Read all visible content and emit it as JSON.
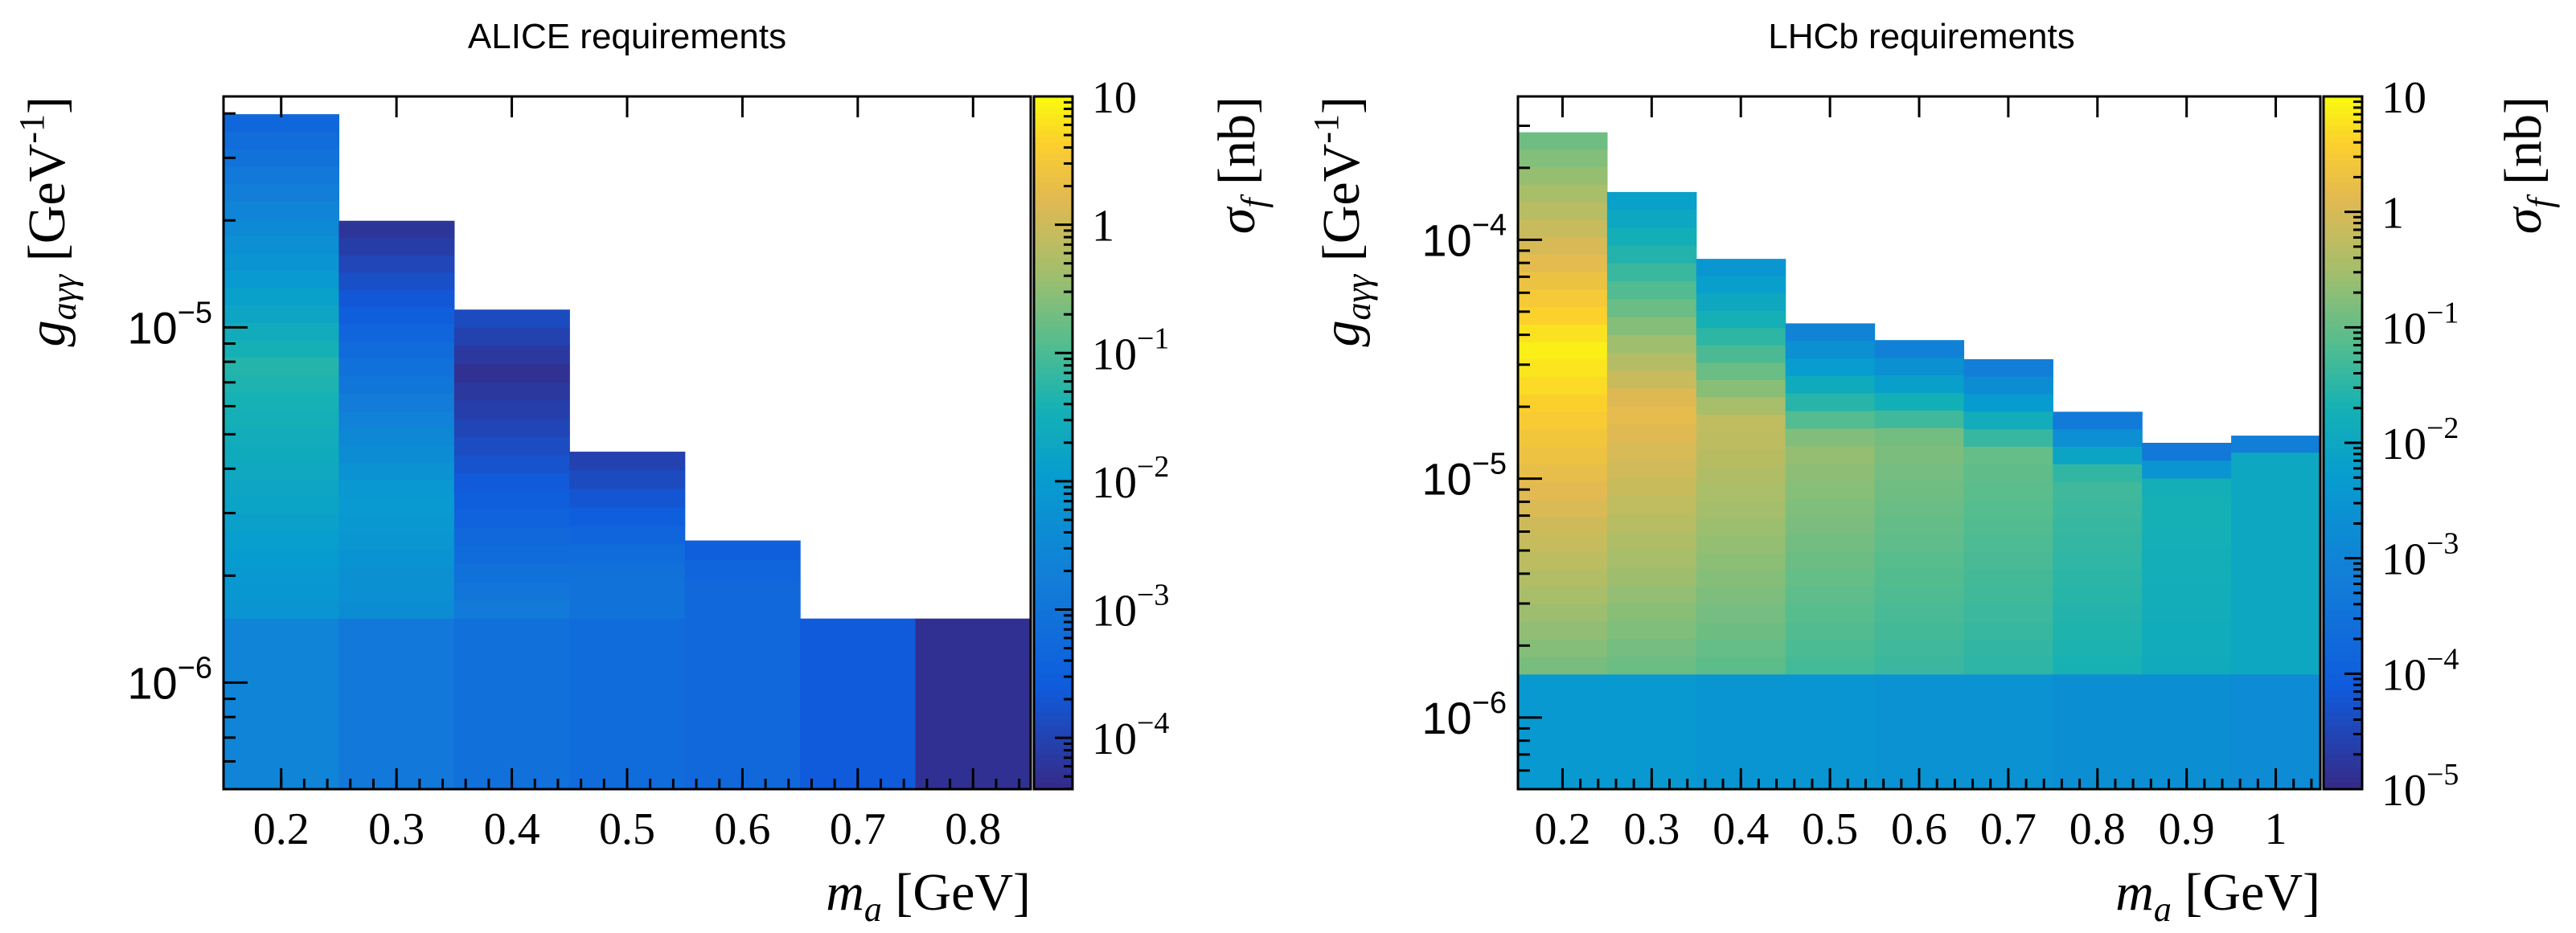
{
  "chart_data": [
    {
      "type": "heatmap",
      "title": "ALICE requirements",
      "xlabel": {
        "symbol": "m",
        "sub": "a",
        "unit": "[GeV]"
      },
      "ylabel": {
        "symbol": "g",
        "sub": "aγγ",
        "unit": "[GeV",
        "unit_exp": "-1",
        "unit_close": "]"
      },
      "zlabel": {
        "symbol": "σ",
        "sub": "f",
        "unit": "[nb]"
      },
      "xlim": [
        0.15,
        0.85
      ],
      "ylim_log10": [
        -6.3,
        -4.35
      ],
      "x_ticks": [
        "0.2",
        "0.3",
        "0.4",
        "0.5",
        "0.6",
        "0.7",
        "0.8"
      ],
      "y_ticks": [
        {
          "base": "10",
          "exp": "−5",
          "log": -5
        },
        {
          "base": "10",
          "exp": "−6",
          "log": -6
        }
      ],
      "z_range_log10": [
        -4.4,
        1
      ],
      "z_ticks": [
        {
          "base": "",
          "exp": "",
          "text": "10",
          "log": 1
        },
        {
          "base": "",
          "exp": "",
          "text": "1",
          "log": 0
        },
        {
          "base": "10",
          "exp": "−1",
          "log": -1
        },
        {
          "base": "10",
          "exp": "−2",
          "log": -2
        },
        {
          "base": "10",
          "exp": "−3",
          "log": -3
        },
        {
          "base": "10",
          "exp": "−4",
          "log": -4
        }
      ],
      "columns": [
        {
          "x": 0.2,
          "y_log_top": -4.4,
          "z_bottom": -2.2,
          "z_top": -3.4,
          "z_peak": -1.3,
          "peak_at": 0.5
        },
        {
          "x": 0.3,
          "y_log_top": -4.7,
          "z_bottom": -2.4,
          "z_top": -4.3,
          "z_peak": -2.0,
          "peak_at": 0.3
        },
        {
          "x": 0.4,
          "y_log_top": -4.95,
          "z_bottom": -2.8,
          "z_top": -3.8,
          "z_peak": -4.3,
          "peak_at": 0.8
        },
        {
          "x": 0.5,
          "y_log_top": -5.35,
          "z_bottom": -3.0,
          "z_top": -4.1,
          "z_peak": -3.1,
          "peak_at": 0.3
        },
        {
          "x": 0.6,
          "y_log_top": -5.6,
          "z_bottom": -3.3,
          "z_top": -3.6,
          "z_peak": -3.3,
          "peak_at": 0.5
        },
        {
          "x": 0.7,
          "y_log_top": -5.82,
          "z_bottom": -3.6,
          "z_top": -3.7,
          "z_peak": -3.6,
          "peak_at": 0.5
        },
        {
          "x": 0.8,
          "y_log_top": -5.82,
          "z_bottom": -4.3,
          "z_top": -4.3,
          "z_peak": -4.3,
          "peak_at": 0.5
        }
      ],
      "bottom_band": {
        "y_log_top": -5.82,
        "z_values": [
          -2.6,
          -2.9,
          -3.1,
          -3.2,
          -3.3,
          -3.6,
          -4.3
        ]
      }
    },
    {
      "type": "heatmap",
      "title": "LHCb requirements",
      "xlabel": {
        "symbol": "m",
        "sub": "a",
        "unit": "[GeV]"
      },
      "ylabel": {
        "symbol": "g",
        "sub": "aγγ",
        "unit": "[GeV",
        "unit_exp": "-1",
        "unit_close": "]"
      },
      "zlabel": {
        "symbol": "σ",
        "sub": "f",
        "unit": "[nb]"
      },
      "xlim": [
        0.15,
        1.05
      ],
      "ylim_log10": [
        -6.3,
        -3.4
      ],
      "x_ticks": [
        "0.2",
        "0.3",
        "0.4",
        "0.5",
        "0.6",
        "0.7",
        "0.8",
        "0.9",
        "1"
      ],
      "y_ticks": [
        {
          "base": "10",
          "exp": "−4",
          "log": -4
        },
        {
          "base": "10",
          "exp": "−5",
          "log": -5
        },
        {
          "base": "10",
          "exp": "−6",
          "log": -6
        }
      ],
      "z_range_log10": [
        -5,
        1
      ],
      "z_ticks": [
        {
          "base": "",
          "exp": "",
          "text": "10",
          "log": 1
        },
        {
          "base": "",
          "exp": "",
          "text": "1",
          "log": 0
        },
        {
          "base": "10",
          "exp": "−1",
          "log": -1
        },
        {
          "base": "10",
          "exp": "−2",
          "log": -2
        },
        {
          "base": "10",
          "exp": "−3",
          "log": -3
        },
        {
          "base": "10",
          "exp": "−4",
          "log": -4
        },
        {
          "base": "10",
          "exp": "−5",
          "log": -5
        }
      ],
      "columns": [
        {
          "x": 0.2,
          "y_log_top": -3.55,
          "z_bottom": -0.9,
          "z_top": -1.0,
          "z_peak": 0.9,
          "peak_at": 0.6
        },
        {
          "x": 0.3,
          "y_log_top": -3.8,
          "z_bottom": -1.0,
          "z_top": -2.3,
          "z_peak": 0.2,
          "peak_at": 0.55
        },
        {
          "x": 0.4,
          "y_log_top": -4.08,
          "z_bottom": -1.1,
          "z_top": -2.6,
          "z_peak": -0.2,
          "peak_at": 0.6
        },
        {
          "x": 0.5,
          "y_log_top": -4.35,
          "z_bottom": -1.3,
          "z_top": -3.2,
          "z_peak": -0.6,
          "peak_at": 0.65
        },
        {
          "x": 0.6,
          "y_log_top": -4.42,
          "z_bottom": -1.4,
          "z_top": -3.3,
          "z_peak": -0.8,
          "peak_at": 0.7
        },
        {
          "x": 0.7,
          "y_log_top": -4.5,
          "z_bottom": -1.5,
          "z_top": -3.4,
          "z_peak": -1.0,
          "peak_at": 0.7
        },
        {
          "x": 0.8,
          "y_log_top": -4.72,
          "z_bottom": -1.7,
          "z_top": -3.6,
          "z_peak": -1.3,
          "peak_at": 0.75
        },
        {
          "x": 0.9,
          "y_log_top": -4.85,
          "z_bottom": -1.9,
          "z_top": -3.7,
          "z_peak": -1.7,
          "peak_at": 0.8
        },
        {
          "x": 1.0,
          "y_log_top": -4.82,
          "z_bottom": -2.0,
          "z_top": -3.8,
          "z_peak": -2.0,
          "peak_at": 0.9
        }
      ],
      "bottom_band": {
        "y_log_top": -5.82,
        "z_values": [
          -2.4,
          -2.4,
          -2.5,
          -2.5,
          -2.6,
          -2.6,
          -2.7,
          -2.7,
          -2.8
        ]
      }
    }
  ]
}
